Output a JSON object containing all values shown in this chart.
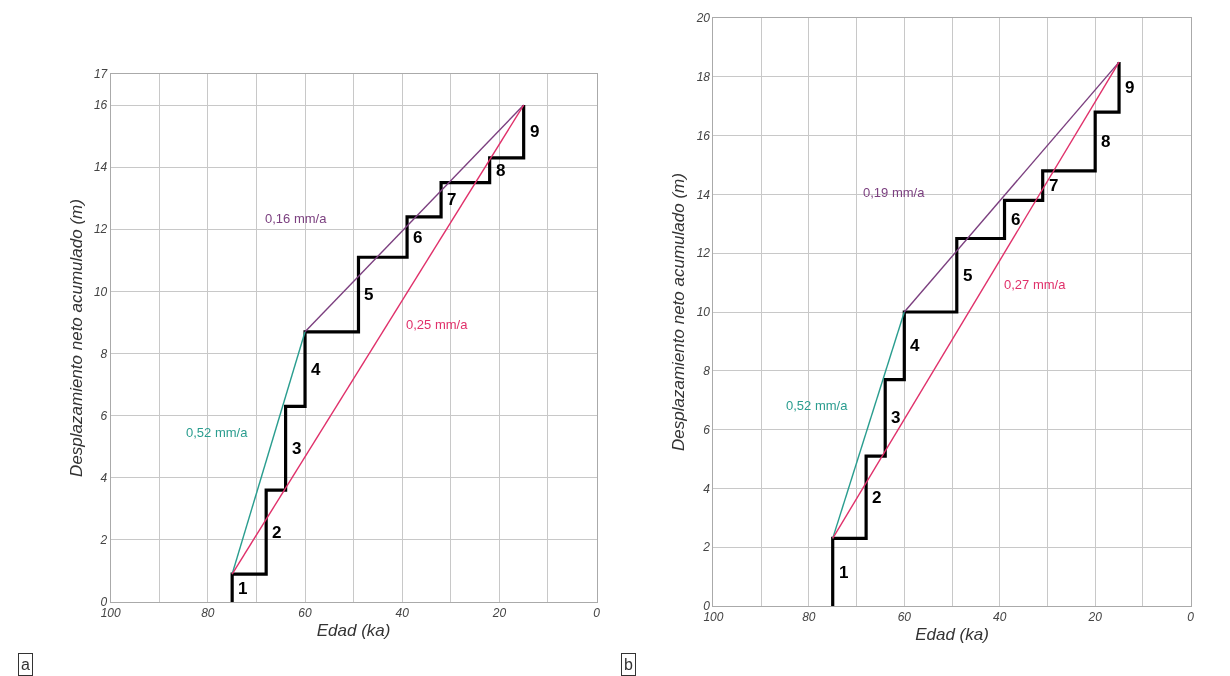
{
  "chart_data": [
    {
      "type": "line",
      "xlabel": "Edad (ka)",
      "ylabel": "Desplazamiento neto acumulado (m)",
      "xlim": [
        100,
        0
      ],
      "ylim": [
        0,
        17
      ],
      "xticks": [
        100,
        {
          "value": 90,
          "label": null
        },
        80,
        {
          "value": 70,
          "label": null
        },
        60,
        {
          "value": 50,
          "label": null
        },
        40,
        {
          "value": 30,
          "label": null
        },
        20,
        {
          "value": 10,
          "label": null
        },
        0
      ],
      "yticks": [
        0,
        2,
        4,
        6,
        8,
        10,
        12,
        14,
        16,
        17
      ],
      "grid": true,
      "marker": "none",
      "series": [
        {
          "color": "#000000",
          "line_style": "solid",
          "x": [
            75,
            75,
            68,
            68,
            64,
            64,
            60,
            60,
            49,
            49,
            39,
            39,
            32,
            32,
            22,
            22,
            15,
            15
          ],
          "values": [
            0,
            0.9,
            0.9,
            3.6,
            3.6,
            6.3,
            6.3,
            8.7,
            8.7,
            11.1,
            11.1,
            12.4,
            12.4,
            13.5,
            13.5,
            14.3,
            14.3,
            16
          ]
        },
        {
          "color": "#2a9d8f",
          "line_style": "solid",
          "x": [
            75,
            60
          ],
          "values": [
            0.9,
            8.7
          ]
        },
        {
          "color": "#7b3f7f",
          "line_style": "solid",
          "x": [
            60,
            15
          ],
          "values": [
            8.7,
            16
          ]
        },
        {
          "color": "#e0306a",
          "line_style": "solid",
          "x": [
            75,
            15
          ],
          "values": [
            0.9,
            16
          ]
        }
      ],
      "annotations": [
        "1",
        "2",
        "3",
        "4",
        "5",
        "6",
        "7",
        "8",
        "9",
        "0,52 mm/a",
        "0,16 mm/a",
        "0,25 mm/a",
        "a"
      ]
    },
    {
      "type": "line",
      "xlabel": "Edad (ka)",
      "ylabel": "Desplazamiento neto acumulado (m)",
      "xlim": [
        100,
        0
      ],
      "ylim": [
        0,
        20
      ],
      "xticks": [
        100,
        {
          "value": 90,
          "label": null
        },
        80,
        {
          "value": 70,
          "label": null
        },
        60,
        {
          "value": 50,
          "label": null
        },
        40,
        {
          "value": 30,
          "label": null
        },
        20,
        {
          "value": 10,
          "label": null
        },
        0
      ],
      "yticks": [
        0,
        2,
        4,
        6,
        8,
        10,
        12,
        14,
        16,
        18,
        20
      ],
      "grid": true,
      "marker": "none",
      "series": [
        {
          "color": "#000000",
          "line_style": "solid",
          "x": [
            75,
            75,
            68,
            68,
            64,
            64,
            60,
            60,
            49,
            49,
            39,
            39,
            31,
            31,
            20,
            20,
            15,
            15
          ],
          "values": [
            0,
            2.3,
            2.3,
            5.1,
            5.1,
            7.7,
            7.7,
            10,
            10,
            12.5,
            12.5,
            13.8,
            13.8,
            14.8,
            14.8,
            16.8,
            16.8,
            18.5
          ]
        },
        {
          "color": "#2a9d8f",
          "line_style": "solid",
          "x": [
            75,
            60
          ],
          "values": [
            2.3,
            10
          ]
        },
        {
          "color": "#7b3f7f",
          "line_style": "solid",
          "x": [
            60,
            15
          ],
          "values": [
            10,
            18.5
          ]
        },
        {
          "color": "#e0306a",
          "line_style": "solid",
          "x": [
            75,
            15
          ],
          "values": [
            2.3,
            18.5
          ]
        }
      ],
      "annotations": [
        "1",
        "2",
        "3",
        "4",
        "5",
        "6",
        "7",
        "8",
        "9",
        "0,52 mm/a",
        "0,19 mm/a",
        "0,27 mm/a",
        "b"
      ]
    }
  ]
}
